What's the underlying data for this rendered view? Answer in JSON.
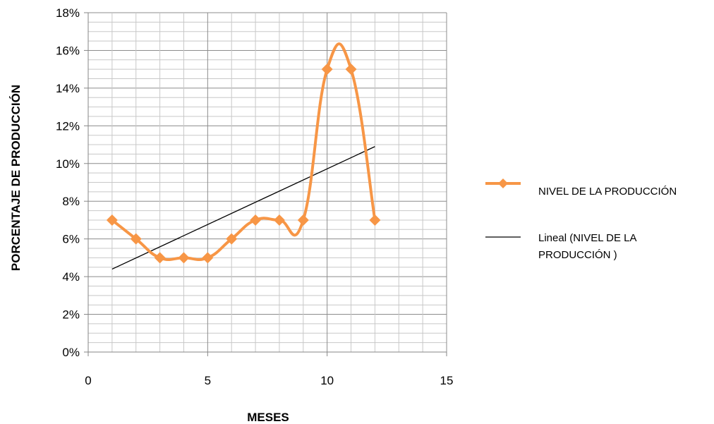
{
  "chart_data": {
    "type": "scatter",
    "title": "",
    "xlabel": "MESES",
    "ylabel": "PORCENTAJE DE PRODUCCIÓN",
    "xlim": [
      0,
      15
    ],
    "ylim": [
      0,
      0.18
    ],
    "x_ticks": [
      0,
      5,
      10,
      15
    ],
    "x_tick_labels": [
      "0",
      "5",
      "10",
      "15"
    ],
    "y_ticks": [
      0,
      0.02,
      0.04,
      0.06,
      0.08,
      0.1,
      0.12,
      0.14,
      0.16,
      0.18
    ],
    "y_tick_labels": [
      "0%",
      "2%",
      "4%",
      "6%",
      "8%",
      "10%",
      "12%",
      "14%",
      "16%",
      "18%"
    ],
    "grid": true,
    "legend_position": "right",
    "series": [
      {
        "name": "NIVEL DE LA PRODUCCIÓN",
        "style": "smoothed line with diamond markers",
        "color": "#F79646",
        "x": [
          1,
          2,
          3,
          4,
          5,
          6,
          7,
          8,
          9,
          10,
          11,
          12
        ],
        "y": [
          0.07,
          0.06,
          0.05,
          0.05,
          0.05,
          0.06,
          0.07,
          0.07,
          0.07,
          0.15,
          0.15,
          0.07
        ]
      },
      {
        "name": "Lineal (NIVEL DE LA PRODUCCIÓN )",
        "style": "linear trendline",
        "color": "#000000",
        "x": [
          1,
          12
        ],
        "y": [
          0.044,
          0.109
        ]
      }
    ]
  }
}
